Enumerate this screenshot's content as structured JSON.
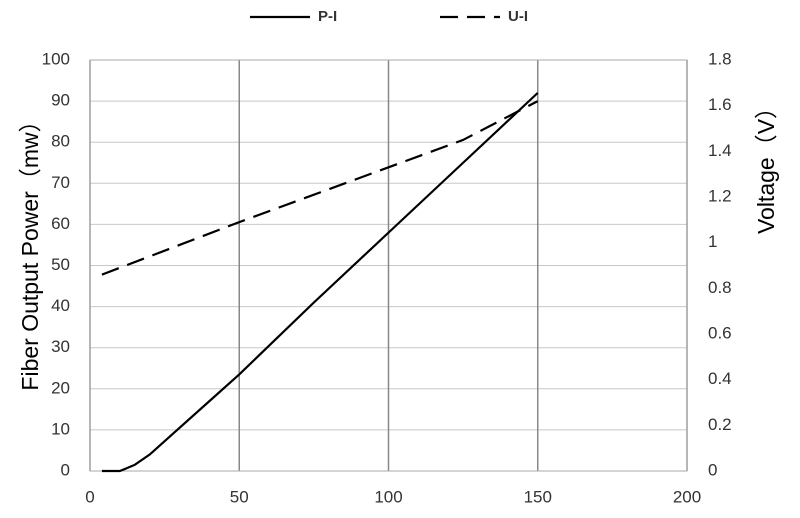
{
  "chart_data": {
    "type": "line",
    "y_label": "Fiber Output Power（mw）",
    "y2_label": "Voltage（V）",
    "xlim": [
      0,
      200
    ],
    "xticks": [
      0,
      50,
      100,
      150,
      200
    ],
    "ylim": [
      0,
      100
    ],
    "yticks": [
      0,
      10,
      20,
      30,
      40,
      50,
      60,
      70,
      80,
      90,
      100
    ],
    "y2lim": [
      0,
      1.8
    ],
    "y2ticks": [
      0,
      0.2,
      0.4,
      0.6,
      0.8,
      1,
      1.2,
      1.4,
      1.6,
      1.8
    ],
    "grid": true,
    "legend": "top",
    "series": [
      {
        "name": "P-I",
        "color": "#000000",
        "style": "solid",
        "x": [
          4,
          10,
          15,
          20,
          30,
          40,
          50,
          75,
          100,
          125,
          150
        ],
        "values": [
          0,
          0,
          1.5,
          4,
          10.5,
          17,
          23.5,
          41,
          58,
          75,
          92
        ]
      },
      {
        "name": "U-I",
        "color": "#000000",
        "style": "dashed",
        "axis": "y2",
        "x": [
          4,
          50,
          100,
          125,
          150
        ],
        "values": [
          0.86,
          1.09,
          1.33,
          1.45,
          1.62
        ]
      }
    ]
  }
}
